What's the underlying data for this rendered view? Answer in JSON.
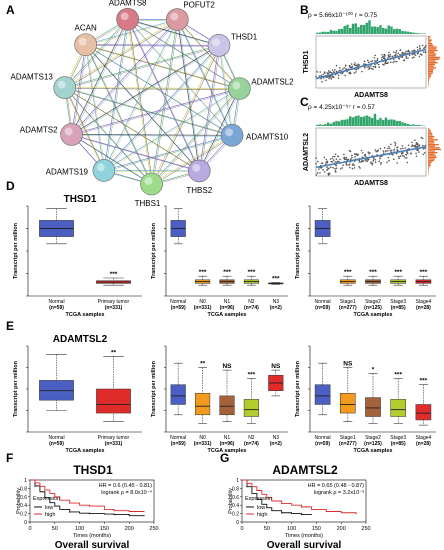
{
  "panels": {
    "A": "A",
    "B": "B",
    "C": "C",
    "D": "D",
    "E": "E",
    "F": "F",
    "G": "G"
  },
  "network": {
    "nodes": [
      "ACAN",
      "ADAMTS8",
      "POFUT2",
      "THSD1",
      "ADAMTSL2",
      "ADAMTS10",
      "THBS2",
      "THBS1",
      "ADAMTS19",
      "ADAMTS2",
      "ADAMTS13"
    ],
    "colors": [
      "#e7bfa4",
      "#d57a86",
      "#d99aa0",
      "#c9c4e8",
      "#96d29a",
      "#7aa7d6",
      "#b8a9e0",
      "#9edc8c",
      "#8fd4dc",
      "#d8a3b8",
      "#a2d3cf"
    ]
  },
  "chart_data": [
    {
      "id": "B",
      "type": "scatter",
      "title": "ρ = 5.66x10⁻¹⁰⁰   r = 0.75",
      "xlabel": "ADAMTS8",
      "ylabel": "THSD1",
      "r": 0.75,
      "point_color": "#555555",
      "line_color": "#4c7fb8",
      "top_hist_color": "#2fa56a",
      "side_hist_color": "#e46a2a"
    },
    {
      "id": "C",
      "type": "scatter",
      "title": "ρ = 4.25x10⁻⁹⁷   r = 0.57",
      "xlabel": "ADAMTS8",
      "ylabel": "ADAMTSL2",
      "r": 0.57,
      "point_color": "#555555",
      "line_color": "#4c7fb8",
      "top_hist_color": "#2fa56a",
      "side_hist_color": "#e46a2a"
    },
    {
      "id": "D1",
      "type": "box",
      "title": "THSD1",
      "ylabel": "Transcript per million",
      "xlabel": "TCGA samples",
      "categories": [
        "Normal",
        "Primary tumor"
      ],
      "counts": [
        "(n=59)",
        "(n=331)"
      ],
      "sig": [
        "",
        "***"
      ],
      "colors": [
        "#4a5fc1",
        "#e02b2b"
      ],
      "boxes": [
        [
          0.58,
          0.66,
          0.75,
          0.84,
          0.97
        ],
        [
          0.12,
          0.14,
          0.155,
          0.17,
          0.2
        ]
      ]
    },
    {
      "id": "D2",
      "type": "box",
      "title": "",
      "ylabel": "Transcript per million",
      "xlabel": "TCGA samples",
      "categories": [
        "Normal",
        "N0",
        "N1",
        "N2",
        "N3"
      ],
      "counts": [
        "(n=59)",
        "(n=331)",
        "(n=96)",
        "(n=74)",
        "(n=2)"
      ],
      "sig": [
        "",
        "***",
        "***",
        "***",
        "***"
      ],
      "colors": [
        "#4a5fc1",
        "#f29a1f",
        "#a5623a",
        "#b5cc2e",
        "#e02b2b"
      ],
      "boxes": [
        [
          0.58,
          0.66,
          0.75,
          0.84,
          0.97
        ],
        [
          0.12,
          0.14,
          0.16,
          0.18,
          0.22
        ],
        [
          0.12,
          0.14,
          0.16,
          0.18,
          0.22
        ],
        [
          0.12,
          0.14,
          0.16,
          0.18,
          0.22
        ],
        [
          0.13,
          0.135,
          0.14,
          0.145,
          0.15
        ]
      ]
    },
    {
      "id": "D3",
      "type": "box",
      "title": "",
      "ylabel": "Transcript per million",
      "xlabel": "TCGA samples",
      "categories": [
        "Normal",
        "Stage1",
        "Stage2",
        "Stage3",
        "Stage4"
      ],
      "counts": [
        "(n=59)",
        "(n=277)",
        "(n=125)",
        "(n=85)",
        "(n=28)"
      ],
      "sig": [
        "",
        "***",
        "***",
        "***",
        "***"
      ],
      "colors": [
        "#4a5fc1",
        "#f29a1f",
        "#a5623a",
        "#b5cc2e",
        "#e02b2b"
      ],
      "boxes": [
        [
          0.58,
          0.66,
          0.75,
          0.84,
          0.97
        ],
        [
          0.12,
          0.14,
          0.16,
          0.18,
          0.22
        ],
        [
          0.12,
          0.14,
          0.16,
          0.18,
          0.22
        ],
        [
          0.12,
          0.14,
          0.16,
          0.18,
          0.22
        ],
        [
          0.12,
          0.14,
          0.16,
          0.18,
          0.22
        ]
      ]
    },
    {
      "id": "E1",
      "type": "box",
      "title": "ADAMTSL2",
      "ylabel": "Transcript per million",
      "xlabel": "TCGA samples",
      "categories": [
        "Normal",
        "Primary tumor"
      ],
      "counts": [
        "(n=59)",
        "(n=331)"
      ],
      "sig": [
        "",
        "**"
      ],
      "colors": [
        "#4a5fc1",
        "#e02b2b"
      ],
      "boxes": [
        [
          0.25,
          0.37,
          0.48,
          0.6,
          0.9
        ],
        [
          0.12,
          0.22,
          0.32,
          0.5,
          0.88
        ]
      ]
    },
    {
      "id": "E2",
      "type": "box",
      "title": "",
      "ylabel": "Transcript per million",
      "xlabel": "TCGA samples",
      "categories": [
        "Normal",
        "N0",
        "N1",
        "N2",
        "N3"
      ],
      "counts": [
        "(n=59)",
        "(n=331)",
        "(n=96)",
        "(n=74)",
        "(n=2)"
      ],
      "sig": [
        "",
        "**",
        "NS",
        "***",
        "NS"
      ],
      "colors": [
        "#4a5fc1",
        "#f29a1f",
        "#a5623a",
        "#b5cc2e",
        "#e02b2b"
      ],
      "boxes": [
        [
          0.2,
          0.32,
          0.42,
          0.55,
          0.8
        ],
        [
          0.1,
          0.2,
          0.3,
          0.45,
          0.75
        ],
        [
          0.12,
          0.2,
          0.3,
          0.42,
          0.72
        ],
        [
          0.1,
          0.18,
          0.26,
          0.38,
          0.62
        ],
        [
          0.42,
          0.48,
          0.57,
          0.66,
          0.72
        ]
      ]
    },
    {
      "id": "E3",
      "type": "box",
      "title": "",
      "ylabel": "Transcript per million",
      "xlabel": "TCGA samples",
      "categories": [
        "Normal",
        "Stage1",
        "Stage2",
        "Stage3",
        "Stage4"
      ],
      "counts": [
        "(n=59)",
        "(n=277)",
        "(n=125)",
        "(n=85)",
        "(n=28)"
      ],
      "sig": [
        "",
        "NS",
        "*",
        "***",
        "***"
      ],
      "colors": [
        "#4a5fc1",
        "#f29a1f",
        "#a5623a",
        "#b5cc2e",
        "#e02b2b"
      ],
      "boxes": [
        [
          0.2,
          0.32,
          0.42,
          0.55,
          0.8
        ],
        [
          0.12,
          0.22,
          0.32,
          0.45,
          0.75
        ],
        [
          0.1,
          0.18,
          0.28,
          0.4,
          0.68
        ],
        [
          0.1,
          0.18,
          0.26,
          0.38,
          0.62
        ],
        [
          0.08,
          0.14,
          0.22,
          0.32,
          0.55
        ]
      ]
    },
    {
      "id": "F",
      "type": "line",
      "title": "THSD1",
      "xlabel": "Times (months)",
      "ylabel": "Probability",
      "subtitle": "Overall survival",
      "stat1": "HR = 0.6 (0.45 - 0.81)",
      "stat2": "logrank ρ = 8.0x10⁻⁴",
      "xlim": [
        0,
        250
      ],
      "ylim": [
        0,
        1
      ],
      "xticks": [
        0,
        50,
        100,
        150,
        200,
        250
      ],
      "yticks": [
        0,
        0.2,
        0.4,
        0.6,
        0.8,
        1
      ],
      "legend_title": "Expression",
      "legend_position": "bottom-left",
      "series": [
        {
          "name": "low",
          "color": "#111111",
          "x": [
            0,
            10,
            20,
            30,
            40,
            50,
            60,
            80,
            100,
            120,
            150,
            170,
            200,
            230
          ],
          "y": [
            1,
            0.86,
            0.72,
            0.58,
            0.46,
            0.38,
            0.3,
            0.24,
            0.21,
            0.2,
            0.19,
            0.18,
            0.15,
            0.15
          ]
        },
        {
          "name": "high",
          "color": "#e02b2b",
          "x": [
            0,
            10,
            20,
            30,
            40,
            50,
            60,
            80,
            100,
            120,
            150,
            170,
            200,
            230
          ],
          "y": [
            1,
            0.93,
            0.85,
            0.76,
            0.68,
            0.6,
            0.52,
            0.45,
            0.4,
            0.38,
            0.3,
            0.27,
            0.25,
            0.25
          ]
        }
      ]
    },
    {
      "id": "G",
      "type": "line",
      "title": "ADAMTSL2",
      "xlabel": "Times (months)",
      "ylabel": "Probability",
      "subtitle": "Overall survival",
      "stat1": "HR = 0.65 (0.48 - 0.87)",
      "stat2": "logrank ρ = 3.2x10⁻³",
      "xlim": [
        0,
        250
      ],
      "ylim": [
        0,
        1
      ],
      "xticks": [
        0,
        50,
        100,
        150,
        200,
        250
      ],
      "yticks": [
        0,
        0.2,
        0.4,
        0.6,
        0.8,
        1
      ],
      "legend_title": "Expression",
      "legend_position": "bottom-left",
      "series": [
        {
          "name": "low",
          "color": "#111111",
          "x": [
            0,
            10,
            20,
            30,
            40,
            50,
            60,
            80,
            100,
            120,
            140
          ],
          "y": [
            1,
            0.84,
            0.68,
            0.54,
            0.42,
            0.34,
            0.27,
            0.22,
            0.2,
            0.18,
            0.17
          ]
        },
        {
          "name": "high",
          "color": "#e02b2b",
          "x": [
            0,
            10,
            20,
            30,
            40,
            50,
            60,
            80,
            100,
            120,
            140,
            170,
            200,
            230
          ],
          "y": [
            1,
            0.92,
            0.84,
            0.75,
            0.66,
            0.58,
            0.5,
            0.44,
            0.4,
            0.36,
            0.3,
            0.25,
            0.22,
            0.2
          ]
        }
      ]
    }
  ]
}
